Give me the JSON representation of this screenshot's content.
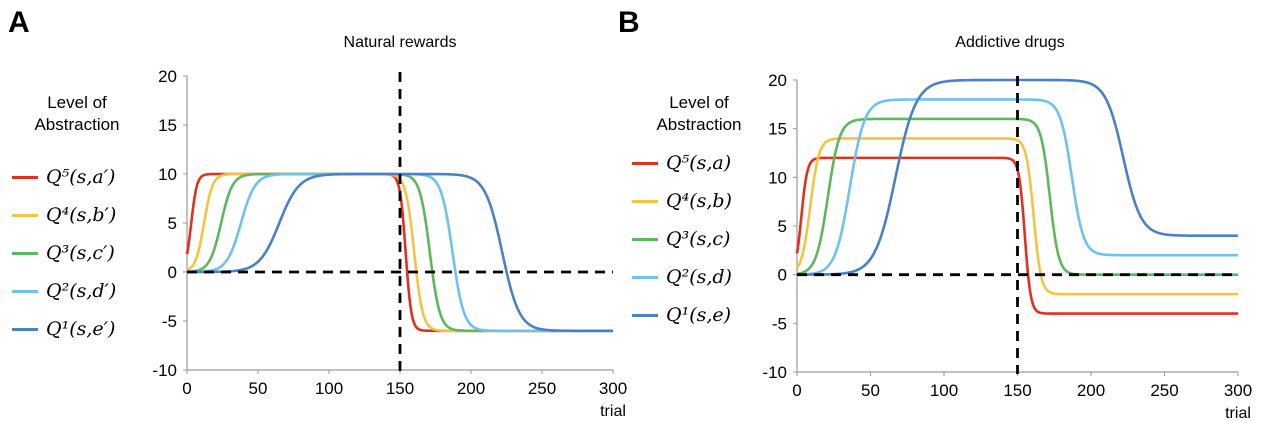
{
  "panels": [
    {
      "letter": "A",
      "legend_title": "Level of Abstraction",
      "legend": [
        {
          "label": "Q⁵(s,a′)",
          "color": "#e0301e"
        },
        {
          "label": "Q⁴(s,b′)",
          "color": "#f5c342"
        },
        {
          "label": "Q³(s,c′)",
          "color": "#5cb85c"
        },
        {
          "label": "Q²(s,d′)",
          "color": "#6ec1f0"
        },
        {
          "label": "Q¹(s,e′)",
          "color": "#4a80c8"
        }
      ]
    },
    {
      "letter": "B",
      "legend_title": "Level of Abstraction",
      "legend": [
        {
          "label": "Q⁵(s,a)",
          "color": "#e0301e"
        },
        {
          "label": "Q⁴(s,b)",
          "color": "#f5c342"
        },
        {
          "label": "Q³(s,c)",
          "color": "#5cb85c"
        },
        {
          "label": "Q²(s,d)",
          "color": "#6ec1f0"
        },
        {
          "label": "Q¹(s,e)",
          "color": "#4a80c8"
        }
      ]
    }
  ],
  "chart_data": [
    {
      "type": "line",
      "title": "Natural rewards",
      "xlabel": "trial",
      "ylabel": "",
      "xlim": [
        0,
        300
      ],
      "ylim": [
        -10,
        20
      ],
      "xticks": [
        0,
        50,
        100,
        150,
        200,
        250,
        300
      ],
      "yticks": [
        -10,
        -5,
        0,
        5,
        10,
        15,
        20
      ],
      "reference_lines": {
        "horizontal_y": 0,
        "vertical_x": 150,
        "style": "dashed"
      },
      "series": [
        {
          "name": "Q⁵(s,a′)",
          "color": "#e0301e",
          "rise_mid": 3,
          "rise_width": 2,
          "plateau": 10,
          "fall_mid": 154,
          "fall_width": 2,
          "final": -6,
          "x": [
            0,
            5,
            10,
            150,
            155,
            160,
            300
          ],
          "y": [
            0,
            9.2,
            10,
            10,
            -3,
            -5.9,
            -6
          ]
        },
        {
          "name": "Q⁴(s,b′)",
          "color": "#f5c342",
          "rise_mid": 12,
          "rise_width": 3,
          "plateau": 10,
          "fall_mid": 160,
          "fall_width": 3,
          "final": -6,
          "x": [
            0,
            5,
            12,
            20,
            150,
            160,
            170,
            300
          ],
          "y": [
            0,
            2.0,
            5,
            9.5,
            10,
            2,
            -5.8,
            -6
          ]
        },
        {
          "name": "Q³(s,c′)",
          "color": "#5cb85c",
          "rise_mid": 24,
          "rise_width": 4,
          "plateau": 10,
          "fall_mid": 171,
          "fall_width": 3.5,
          "final": -6,
          "x": [
            0,
            15,
            24,
            35,
            160,
            171,
            185,
            300
          ],
          "y": [
            0,
            1.0,
            5,
            9.8,
            10,
            2,
            -5.8,
            -6
          ]
        },
        {
          "name": "Q²(s,d′)",
          "color": "#6ec1f0",
          "rise_mid": 38,
          "rise_width": 5,
          "plateau": 10,
          "fall_mid": 187,
          "fall_width": 4,
          "final": -6,
          "x": [
            0,
            25,
            38,
            55,
            170,
            187,
            205,
            300
          ],
          "y": [
            0,
            0.7,
            5,
            9.8,
            10,
            2,
            -5.8,
            -6
          ]
        },
        {
          "name": "Q¹(s,e′)",
          "color": "#4a80c8",
          "rise_mid": 65,
          "rise_width": 7,
          "plateau": 10,
          "fall_mid": 222,
          "fall_width": 6,
          "final": -6,
          "x": [
            0,
            45,
            65,
            90,
            200,
            222,
            250,
            300
          ],
          "y": [
            0,
            0.5,
            5,
            9.7,
            10,
            2,
            -5.7,
            -6
          ]
        }
      ]
    },
    {
      "type": "line",
      "title": "Addictive drugs",
      "xlabel": "trial",
      "ylabel": "",
      "xlim": [
        0,
        300
      ],
      "ylim": [
        -10,
        20
      ],
      "xticks": [
        0,
        50,
        100,
        150,
        200,
        250,
        300
      ],
      "yticks": [
        -10,
        -5,
        0,
        5,
        10,
        15,
        20
      ],
      "reference_lines": {
        "horizontal_y": 0,
        "vertical_x": 150,
        "style": "dashed"
      },
      "series": [
        {
          "name": "Q⁵(s,a)",
          "color": "#e0301e",
          "rise_mid": 3,
          "rise_width": 2,
          "plateau": 12,
          "fall_mid": 155,
          "fall_width": 2,
          "final": -4,
          "x": [
            0,
            5,
            10,
            150,
            155,
            160,
            300
          ],
          "y": [
            0,
            11,
            12,
            12,
            4,
            -3.9,
            -4
          ]
        },
        {
          "name": "Q⁴(s,b)",
          "color": "#f5c342",
          "rise_mid": 9,
          "rise_width": 3,
          "plateau": 14,
          "fall_mid": 161,
          "fall_width": 2.5,
          "final": -2,
          "x": [
            0,
            9,
            20,
            150,
            161,
            170,
            300
          ],
          "y": [
            0,
            7,
            13.8,
            14,
            6,
            -1.9,
            -2
          ]
        },
        {
          "name": "Q³(s,c)",
          "color": "#5cb85c",
          "rise_mid": 21,
          "rise_width": 4,
          "plateau": 16,
          "fall_mid": 172,
          "fall_width": 3,
          "final": 0,
          "x": [
            0,
            21,
            35,
            160,
            172,
            185,
            300
          ],
          "y": [
            0,
            8,
            15.9,
            16,
            8,
            0.1,
            0
          ]
        },
        {
          "name": "Q²(s,d)",
          "color": "#6ec1f0",
          "rise_mid": 36,
          "rise_width": 5,
          "plateau": 18,
          "fall_mid": 187,
          "fall_width": 4,
          "final": 2,
          "x": [
            0,
            36,
            55,
            175,
            187,
            205,
            300
          ],
          "y": [
            0,
            9,
            17.9,
            18,
            10,
            2.1,
            2
          ]
        },
        {
          "name": "Q¹(s,e)",
          "color": "#4a80c8",
          "rise_mid": 67,
          "rise_width": 7,
          "plateau": 20,
          "fall_mid": 222,
          "fall_width": 6,
          "final": 4,
          "x": [
            0,
            45,
            67,
            95,
            200,
            222,
            250,
            300
          ],
          "y": [
            0,
            0.5,
            10,
            19.8,
            20,
            12,
            4.3,
            4
          ]
        }
      ]
    }
  ]
}
